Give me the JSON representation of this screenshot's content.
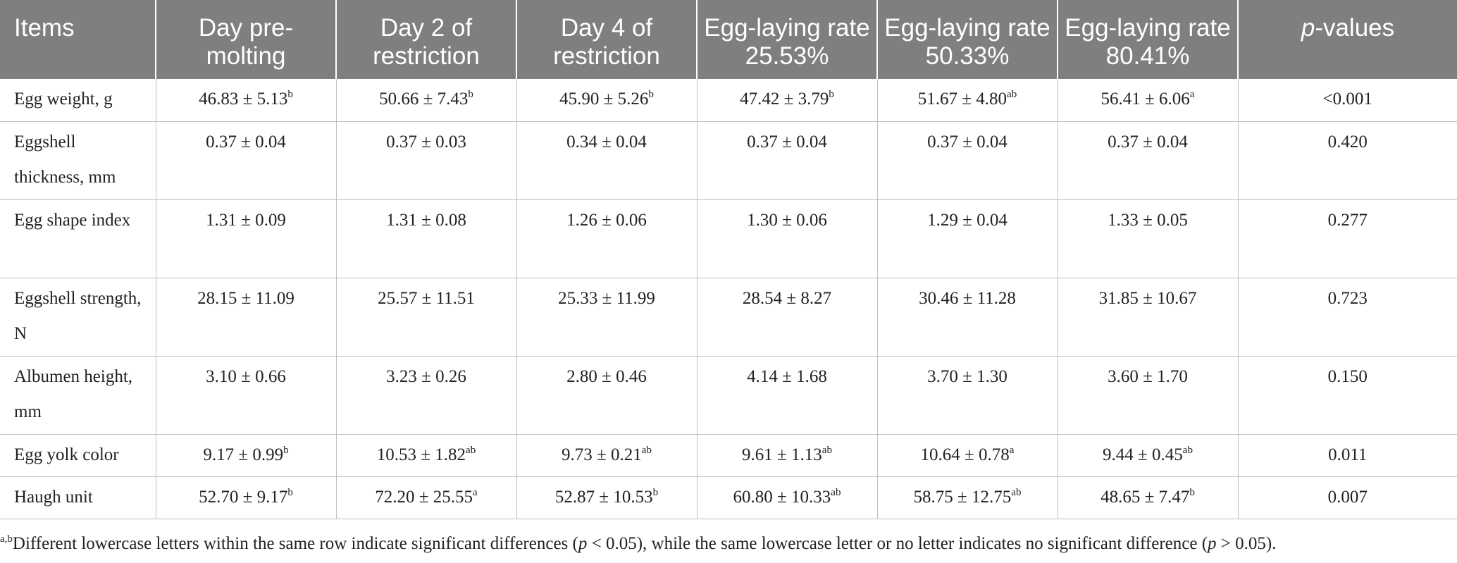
{
  "header": {
    "items": "Items",
    "day_pre_molting": "Day pre-molting",
    "day2_restriction": "Day 2 of restriction",
    "day4_restriction": "Day 4 of restriction",
    "rate_25": "Egg-laying rate 25.53%",
    "rate_50": "Egg-laying rate 50.33%",
    "rate_80": "Egg-laying rate 80.41%",
    "p_italic": "p",
    "p_rest": "-values"
  },
  "rows": [
    {
      "label": "Egg weight, g",
      "cells": [
        {
          "v": "46.83 ± 5.13",
          "s": "b"
        },
        {
          "v": "50.66 ± 7.43",
          "s": "b"
        },
        {
          "v": "45.90 ± 5.26",
          "s": "b"
        },
        {
          "v": "47.42 ± 3.79",
          "s": "b"
        },
        {
          "v": "51.67 ± 4.80",
          "s": "ab"
        },
        {
          "v": "56.41 ± 6.06",
          "s": "a"
        }
      ],
      "p": "<0.001"
    },
    {
      "label": "Eggshell thickness, mm",
      "cells": [
        {
          "v": "0.37 ± 0.04",
          "s": ""
        },
        {
          "v": "0.37 ± 0.03",
          "s": ""
        },
        {
          "v": "0.34 ± 0.04",
          "s": ""
        },
        {
          "v": "0.37 ± 0.04",
          "s": ""
        },
        {
          "v": "0.37 ± 0.04",
          "s": ""
        },
        {
          "v": "0.37 ± 0.04",
          "s": ""
        }
      ],
      "p": "0.420"
    },
    {
      "label": "Egg shape index",
      "cells": [
        {
          "v": "1.31 ± 0.09",
          "s": ""
        },
        {
          "v": "1.31 ± 0.08",
          "s": ""
        },
        {
          "v": "1.26 ± 0.06",
          "s": ""
        },
        {
          "v": "1.30 ± 0.06",
          "s": ""
        },
        {
          "v": "1.29 ± 0.04",
          "s": ""
        },
        {
          "v": "1.33 ± 0.05",
          "s": ""
        }
      ],
      "p": "0.277"
    },
    {
      "label": "Eggshell strength, N",
      "cells": [
        {
          "v": "28.15 ± 11.09",
          "s": ""
        },
        {
          "v": "25.57 ± 11.51",
          "s": ""
        },
        {
          "v": "25.33 ± 11.99",
          "s": ""
        },
        {
          "v": "28.54 ± 8.27",
          "s": ""
        },
        {
          "v": "30.46 ± 11.28",
          "s": ""
        },
        {
          "v": "31.85 ± 10.67",
          "s": ""
        }
      ],
      "p": "0.723"
    },
    {
      "label": "Albumen height, mm",
      "cells": [
        {
          "v": "3.10 ± 0.66",
          "s": ""
        },
        {
          "v": "3.23 ± 0.26",
          "s": ""
        },
        {
          "v": "2.80 ± 0.46",
          "s": ""
        },
        {
          "v": "4.14 ± 1.68",
          "s": ""
        },
        {
          "v": "3.70 ± 1.30",
          "s": ""
        },
        {
          "v": "3.60 ± 1.70",
          "s": ""
        }
      ],
      "p": "0.150"
    },
    {
      "label": "Egg yolk color",
      "cells": [
        {
          "v": "9.17 ± 0.99",
          "s": "b"
        },
        {
          "v": "10.53 ± 1.82",
          "s": "ab"
        },
        {
          "v": "9.73 ± 0.21",
          "s": "ab"
        },
        {
          "v": "9.61 ± 1.13",
          "s": "ab"
        },
        {
          "v": "10.64 ± 0.78",
          "s": "a"
        },
        {
          "v": "9.44 ± 0.45",
          "s": "ab"
        }
      ],
      "p": "0.011"
    },
    {
      "label": "Haugh unit",
      "cells": [
        {
          "v": "52.70 ± 9.17",
          "s": "b"
        },
        {
          "v": "72.20 ± 25.55",
          "s": "a"
        },
        {
          "v": "52.87 ± 10.53",
          "s": "b"
        },
        {
          "v": "60.80 ± 10.33",
          "s": "ab"
        },
        {
          "v": "58.75 ± 12.75",
          "s": "ab"
        },
        {
          "v": "48.65 ± 7.47",
          "s": "b"
        }
      ],
      "p": "0.007"
    }
  ],
  "footnote": {
    "sup": "a,b",
    "text1": "Different lowercase letters within the same row indicate significant differences (",
    "p1": "p",
    "text2": " < 0.05), while the same lowercase letter or no letter indicates no significant difference (",
    "p2": "p",
    "text3": " > 0.05)."
  }
}
